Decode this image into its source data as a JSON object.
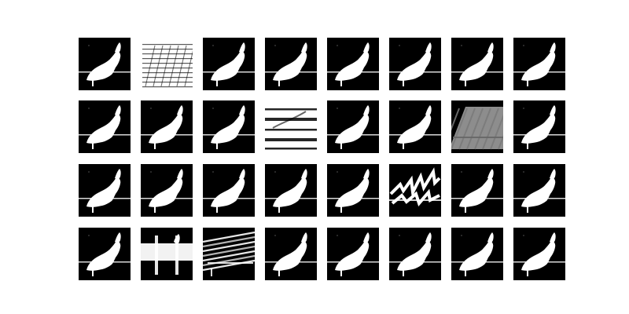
{
  "figure": {
    "background_color": "#ffffff",
    "tile_background_color": "#000000",
    "foreground_color": "#ffffff",
    "grid": {
      "rows": 4,
      "columns": 8
    },
    "tiles": [
      {
        "row": 1,
        "col": 1,
        "variant": "normal"
      },
      {
        "row": 1,
        "col": 2,
        "variant": "bright-streaks"
      },
      {
        "row": 1,
        "col": 3,
        "variant": "normal"
      },
      {
        "row": 1,
        "col": 4,
        "variant": "normal"
      },
      {
        "row": 1,
        "col": 5,
        "variant": "normal"
      },
      {
        "row": 1,
        "col": 6,
        "variant": "normal"
      },
      {
        "row": 1,
        "col": 7,
        "variant": "normal"
      },
      {
        "row": 1,
        "col": 8,
        "variant": "normal"
      },
      {
        "row": 2,
        "col": 1,
        "variant": "normal"
      },
      {
        "row": 2,
        "col": 2,
        "variant": "normal"
      },
      {
        "row": 2,
        "col": 3,
        "variant": "normal"
      },
      {
        "row": 2,
        "col": 4,
        "variant": "white-stripes"
      },
      {
        "row": 2,
        "col": 5,
        "variant": "normal"
      },
      {
        "row": 2,
        "col": 6,
        "variant": "normal"
      },
      {
        "row": 2,
        "col": 7,
        "variant": "gray-diagonal"
      },
      {
        "row": 2,
        "col": 8,
        "variant": "normal"
      },
      {
        "row": 3,
        "col": 1,
        "variant": "normal"
      },
      {
        "row": 3,
        "col": 2,
        "variant": "normal"
      },
      {
        "row": 3,
        "col": 3,
        "variant": "normal"
      },
      {
        "row": 3,
        "col": 4,
        "variant": "normal"
      },
      {
        "row": 3,
        "col": 5,
        "variant": "normal"
      },
      {
        "row": 3,
        "col": 6,
        "variant": "jagged"
      },
      {
        "row": 3,
        "col": 7,
        "variant": "normal"
      },
      {
        "row": 3,
        "col": 8,
        "variant": "normal"
      },
      {
        "row": 4,
        "col": 1,
        "variant": "normal"
      },
      {
        "row": 4,
        "col": 2,
        "variant": "horizontal-band"
      },
      {
        "row": 4,
        "col": 3,
        "variant": "cross-hatch"
      },
      {
        "row": 4,
        "col": 4,
        "variant": "normal"
      },
      {
        "row": 4,
        "col": 5,
        "variant": "normal"
      },
      {
        "row": 4,
        "col": 6,
        "variant": "normal"
      },
      {
        "row": 4,
        "col": 7,
        "variant": "normal"
      },
      {
        "row": 4,
        "col": 8,
        "variant": "normal"
      }
    ]
  }
}
